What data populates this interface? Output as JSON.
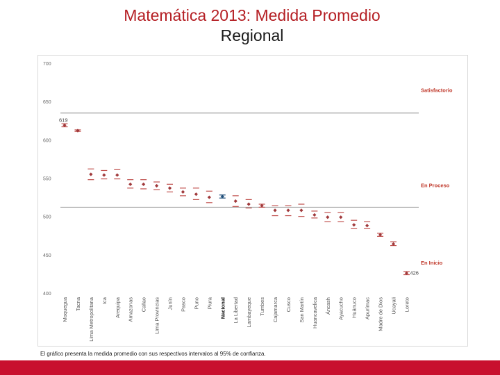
{
  "slide": {
    "title_line1": "Matemática 2013: Medida Promedio",
    "title_line2": "Regional",
    "caption": "El gráfico presenta la medida promedio con sus respectivos intervalos al 95% de confianza."
  },
  "colors": {
    "title": "#b52025",
    "marker": "#a0393b",
    "ci_line": "#c0504d",
    "national": "#1f4e79",
    "threshold": "#a6a6a6",
    "band_label": "#c0392b",
    "footer": "#c8102e"
  },
  "chart_data": {
    "type": "scatter",
    "title": "",
    "xlabel": "",
    "ylabel": "",
    "ylim": [
      400,
      700
    ],
    "yticks": [
      400,
      450,
      500,
      550,
      600,
      650,
      700
    ],
    "grid": false,
    "categories": [
      "Moquegua",
      "Tacna",
      "Lima Metropolitana",
      "Ica",
      "Arequipa",
      "Amazonas",
      "Callao",
      "Lima Provincias",
      "Junín",
      "Pasco",
      "Puno",
      "Piura",
      "Nacional",
      "La Libertad",
      "Lambayeque",
      "Tumbes",
      "Cajamarca",
      "Cusco",
      "San Martín",
      "Huancavelica",
      "Áncash",
      "Ayacucho",
      "Huánuco",
      "Apurímac",
      "Madre de Dios",
      "Ucayali",
      "Loreto"
    ],
    "highlight_category": "Nacional",
    "series": [
      {
        "values": [
          619,
          612,
          555,
          554,
          554,
          542,
          542,
          540,
          537,
          532,
          529,
          525,
          526,
          520,
          516,
          514,
          508,
          508,
          508,
          502,
          499,
          499,
          489,
          488,
          476,
          464,
          426
        ],
        "ci_low": [
          617,
          611,
          548,
          549,
          549,
          537,
          536,
          535,
          532,
          527,
          522,
          518,
          524,
          513,
          511,
          512,
          501,
          501,
          500,
          498,
          493,
          493,
          484,
          484,
          474,
          462,
          424
        ],
        "ci_high": [
          621,
          613,
          562,
          560,
          561,
          548,
          548,
          545,
          542,
          537,
          537,
          533,
          528,
          527,
          522,
          516,
          514,
          514,
          516,
          507,
          505,
          505,
          495,
          493,
          478,
          467,
          428
        ]
      }
    ],
    "thresholds": [
      {
        "value": 635,
        "label": "Satisfactorio",
        "label_value": 665
      },
      {
        "value": 512,
        "label": "En Proceso",
        "label_value": 541
      },
      {
        "label": "En Inicio",
        "label_value": 440
      }
    ],
    "annotations": [
      {
        "text": "619",
        "category": "Moquegua",
        "value": 619
      },
      {
        "text": "426",
        "category": "Loreto",
        "value": 426
      }
    ]
  }
}
